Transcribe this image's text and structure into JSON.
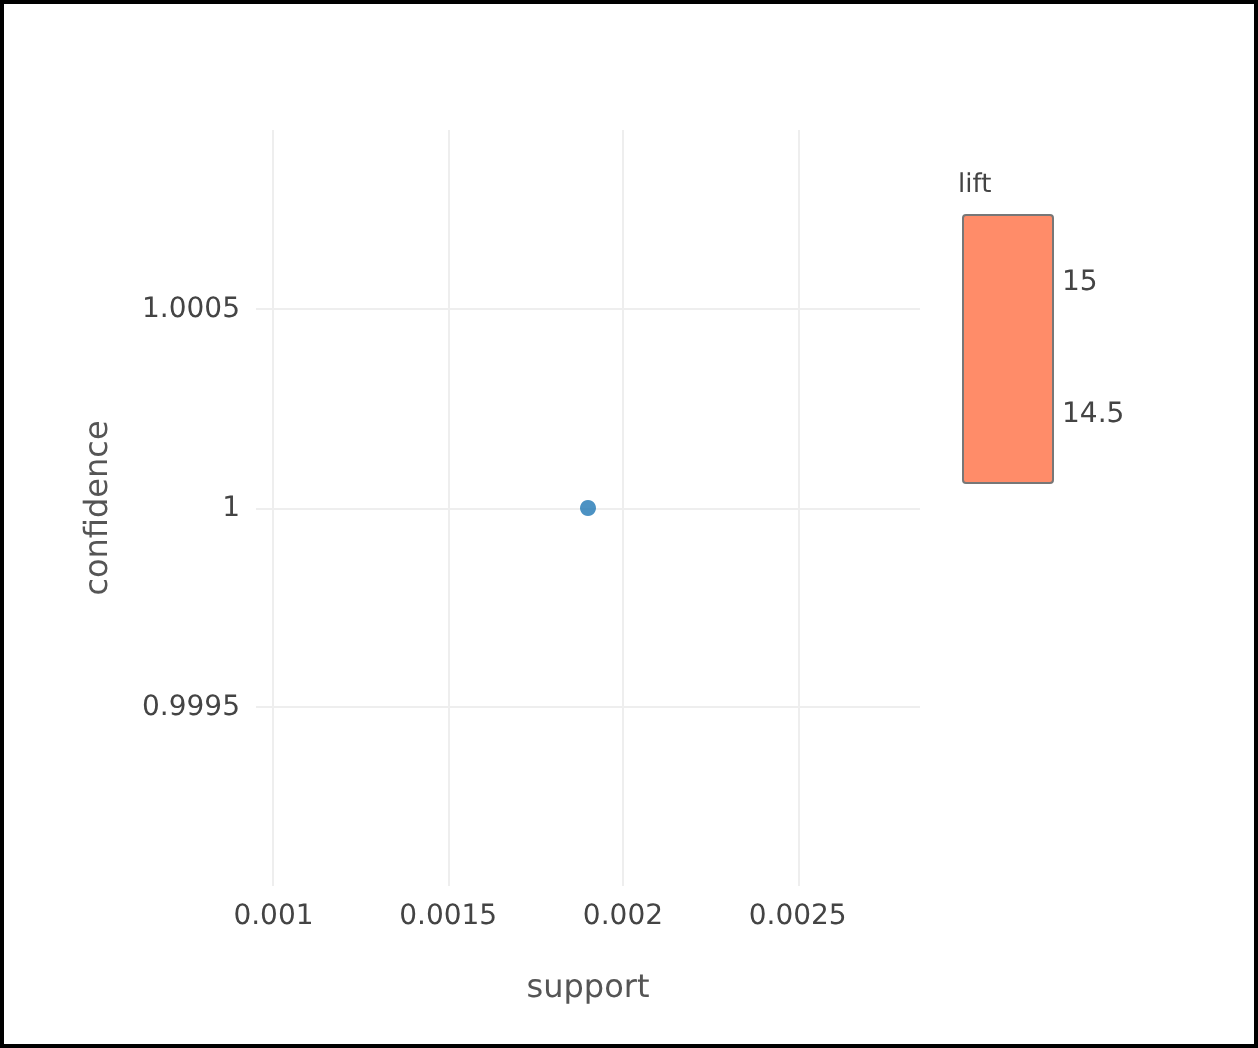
{
  "chart_data": {
    "type": "scatter",
    "xlabel": "support",
    "ylabel": "confidence",
    "clabel": "lift",
    "series": [
      {
        "color": "#1f77b4",
        "x": [
          0.0019
        ],
        "values": [
          1
        ]
      }
    ],
    "xlim": [
      0.00095,
      0.00285
    ],
    "xticks": [
      0.001,
      0.0015,
      0.002,
      0.0025
    ],
    "ylim": [
      0.99905,
      1.00095
    ],
    "yticks": [
      0.9995,
      1,
      1.0005
    ],
    "annotations": [
      "15",
      "14.5"
    ],
    "grid": true,
    "marker": "circle"
  }
}
